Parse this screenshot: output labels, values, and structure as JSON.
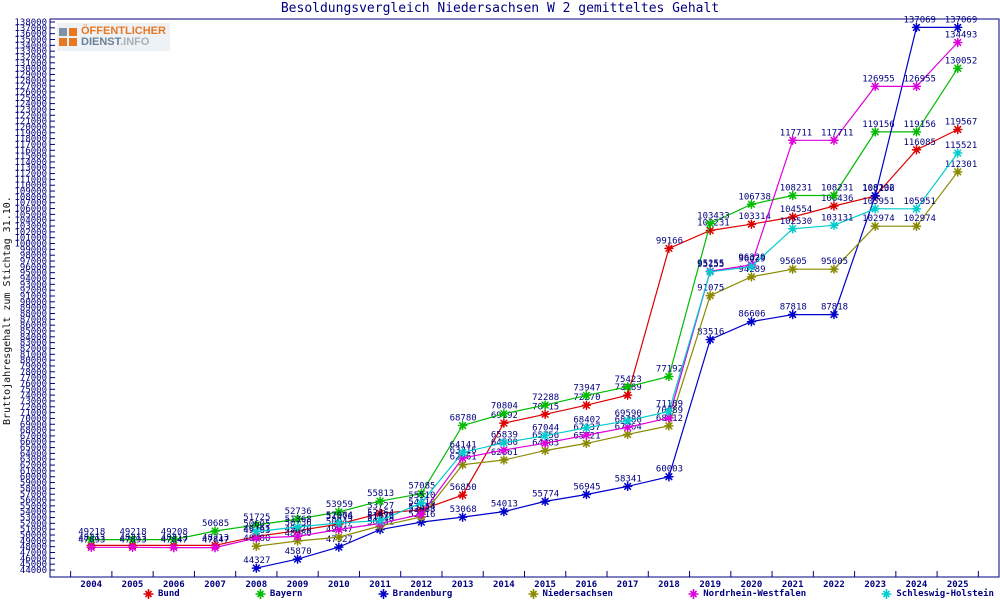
{
  "logo": {
    "line1": "ÖFFENTLICHER",
    "line2a": "DIENST",
    "line2b": ".INFO"
  },
  "chart_data": {
    "type": "line",
    "title": "Besoldungsvergleich Niedersachsen W 2 gemitteltes Gehalt",
    "ylabel": "Bruttojahresgehalt zum Stichtag 31.10.",
    "xlabel": "",
    "ylim": [
      44000,
      138000
    ],
    "ytick_step": 1000,
    "grid": false,
    "legend_position": "bottom",
    "point_labels": true,
    "axis_color": "#000080",
    "label_color": "#000080",
    "years": [
      2004,
      2005,
      2006,
      2007,
      2008,
      2009,
      2010,
      2011,
      2012,
      2013,
      2014,
      2015,
      2016,
      2017,
      2018,
      2019,
      2020,
      2021,
      2022,
      2023,
      2024,
      2025
    ],
    "series": [
      {
        "name": "Bund",
        "color": "#dd0000",
        "values": [
          48213,
          48213,
          48213,
          48213,
          49761,
          50736,
          51876,
          53727,
          54318,
          56850,
          69192,
          70715,
          72270,
          73989,
          99166,
          102231,
          103314,
          104554,
          106436,
          108136,
          116085,
          119567
        ]
      },
      {
        "name": "Bayern",
        "color": "#00bb00",
        "values": [
          49218,
          49218,
          49208,
          50685,
          51725,
          52736,
          53959,
          55813,
          57085,
          68780,
          70804,
          72288,
          73947,
          75423,
          77192,
          103433,
          106738,
          108231,
          108231,
          119156,
          119156,
          130052
        ]
      },
      {
        "name": "Brandenburg",
        "color": "#0000cc",
        "values": [
          null,
          null,
          null,
          null,
          44327,
          45870,
          47927,
          50932,
          52216,
          53068,
          54013,
          55774,
          56945,
          58341,
          60003,
          83516,
          86606,
          87818,
          87818,
          108202,
          137069,
          137069
        ]
      },
      {
        "name": "Niedersachsen",
        "color": "#8a8a00",
        "values": [
          null,
          null,
          null,
          null,
          48080,
          48980,
          49647,
          51548,
          53088,
          62061,
          62861,
          64483,
          65721,
          67264,
          68712,
          91075,
          94289,
          95605,
          95605,
          102974,
          102974,
          112301
        ]
      },
      {
        "name": "Nordrhein-Westfalen",
        "color": "#dd00dd",
        "values": [
          47893,
          47893,
          47847,
          47847,
          49483,
          49770,
          50947,
          51976,
          53554,
          63216,
          64580,
          65756,
          67137,
          68480,
          70089,
          95255,
          96329,
          117711,
          117711,
          126955,
          126955,
          134493
        ]
      },
      {
        "name": "Schleswig-Holstein",
        "color": "#00cccc",
        "values": [
          null,
          null,
          null,
          null,
          50605,
          51368,
          52064,
          52464,
          55510,
          64141,
          65839,
          67044,
          68402,
          69590,
          71189,
          95155,
          96029,
          102530,
          103131,
          105951,
          105951,
          115521
        ]
      }
    ]
  }
}
